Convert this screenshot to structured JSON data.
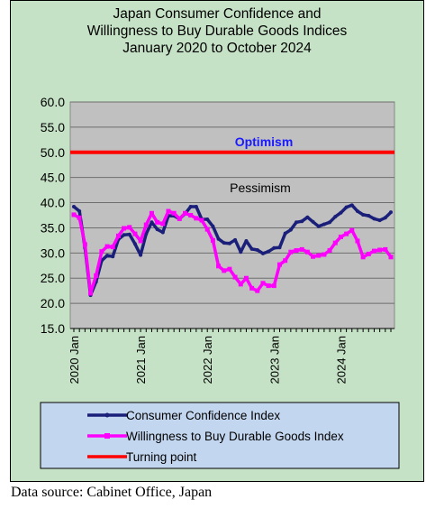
{
  "chart_data": {
    "type": "line",
    "title_lines": [
      "Japan Consumer Confidence and",
      "Willingness to Buy Durable Goods Indices",
      "January 2020 to October 2024"
    ],
    "x": [
      "2020-01",
      "2020-02",
      "2020-03",
      "2020-04",
      "2020-05",
      "2020-06",
      "2020-07",
      "2020-08",
      "2020-09",
      "2020-10",
      "2020-11",
      "2020-12",
      "2021-01",
      "2021-02",
      "2021-03",
      "2021-04",
      "2021-05",
      "2021-06",
      "2021-07",
      "2021-08",
      "2021-09",
      "2021-10",
      "2021-11",
      "2021-12",
      "2022-01",
      "2022-02",
      "2022-03",
      "2022-04",
      "2022-05",
      "2022-06",
      "2022-07",
      "2022-08",
      "2022-09",
      "2022-10",
      "2022-11",
      "2022-12",
      "2023-01",
      "2023-02",
      "2023-03",
      "2023-04",
      "2023-05",
      "2023-06",
      "2023-07",
      "2023-08",
      "2023-09",
      "2023-10",
      "2023-11",
      "2023-12",
      "2024-01",
      "2024-02",
      "2024-03",
      "2024-04",
      "2024-05",
      "2024-06",
      "2024-07",
      "2024-08",
      "2024-09",
      "2024-10"
    ],
    "x_tick_labels": [
      "2020 Jan",
      "2021 Jan",
      "2022 Jan",
      "2023 Jan",
      "2024 Jan"
    ],
    "x_tick_positions": [
      "2020-01",
      "2021-01",
      "2022-01",
      "2023-01",
      "2024-01"
    ],
    "ylim": [
      15,
      60
    ],
    "y_ticks": [
      "15.0",
      "20.0",
      "25.0",
      "30.0",
      "35.0",
      "40.0",
      "45.0",
      "50.0",
      "55.0",
      "60.0"
    ],
    "grid": true,
    "series": [
      {
        "name": "Consumer Confidence Index",
        "color": "#1a1f7a",
        "values": [
          39.2,
          38.3,
          31.0,
          21.6,
          24.3,
          28.5,
          29.5,
          29.3,
          32.7,
          33.6,
          33.7,
          31.8,
          29.6,
          33.8,
          36.1,
          34.7,
          34.1,
          37.4,
          37.4,
          36.8,
          37.8,
          39.2,
          39.2,
          36.7,
          36.7,
          35.3,
          32.8,
          32.0,
          31.9,
          32.6,
          30.2,
          32.4,
          30.8,
          30.6,
          29.9,
          30.3,
          31.0,
          31.1,
          33.9,
          34.6,
          36.1,
          36.3,
          37.1,
          36.2,
          35.3,
          35.7,
          36.1,
          37.2,
          38.0,
          39.1,
          39.5,
          38.3,
          37.6,
          37.4,
          36.8,
          36.5,
          37.0,
          38.1
        ]
      },
      {
        "name": "Willingness to Buy Durable Goods Index",
        "color": "#ff00ff",
        "values": [
          37.6,
          37.0,
          31.7,
          22.0,
          25.5,
          30.3,
          31.3,
          31.2,
          33.4,
          34.9,
          35.1,
          33.8,
          32.4,
          35.6,
          37.9,
          36.1,
          35.8,
          38.3,
          37.9,
          36.8,
          37.9,
          37.5,
          36.9,
          36.5,
          34.7,
          32.5,
          27.4,
          26.5,
          26.8,
          25.2,
          23.8,
          25.0,
          23.0,
          22.5,
          24.0,
          23.5,
          23.5,
          27.7,
          28.5,
          30.2,
          30.5,
          30.7,
          30.2,
          29.3,
          29.5,
          29.7,
          30.5,
          32.0,
          33.2,
          33.8,
          34.5,
          32.4,
          29.2,
          29.8,
          30.4,
          30.6,
          30.7,
          29.2
        ]
      }
    ],
    "reference_lines": [
      {
        "name": "Turning point",
        "value": 50.0,
        "color": "#ff0000"
      }
    ],
    "annotations": {
      "optimism": "Optimism",
      "pessimism": "Pessimism"
    },
    "legend": {
      "placement": "bottom",
      "entries": [
        "Consumer Confidence Index",
        "Willingness to Buy Durable Goods Index",
        "Turning point"
      ]
    },
    "colors": {
      "outer_background": "#c6e2c6",
      "plot_background": "#c0c0c0",
      "legend_background": "#c3d6ef"
    }
  },
  "source_note": "Data source: Cabinet Office, Japan"
}
